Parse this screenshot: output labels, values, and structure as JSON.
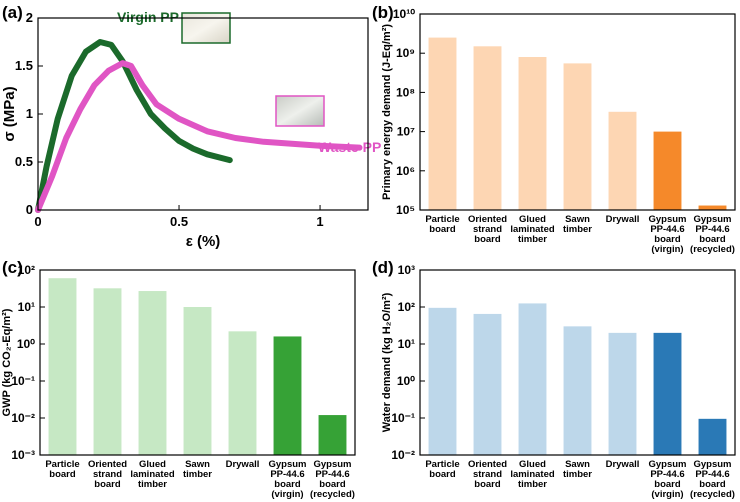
{
  "chart_data": [
    {
      "type": "line",
      "label": "(a)",
      "xlabel": "ε (%)",
      "ylabel": "σ (MPa)",
      "xlim": [
        0,
        1.17
      ],
      "xticks": [
        0,
        0.5,
        1
      ],
      "ylim": [
        0,
        2
      ],
      "yticks": [
        0,
        0.5,
        1,
        1.5,
        2
      ],
      "series": [
        {
          "name": "Virgin PP",
          "color": "#1b6a2b",
          "x": [
            0,
            0.03,
            0.07,
            0.12,
            0.17,
            0.22,
            0.26,
            0.3,
            0.35,
            0.4,
            0.45,
            0.5,
            0.55,
            0.6,
            0.68
          ],
          "values": [
            0,
            0.45,
            0.95,
            1.4,
            1.65,
            1.75,
            1.72,
            1.55,
            1.25,
            1.0,
            0.85,
            0.72,
            0.64,
            0.58,
            0.52
          ]
        },
        {
          "name": "Waste PP",
          "color": "#e055c4",
          "x": [
            0,
            0.05,
            0.1,
            0.15,
            0.2,
            0.25,
            0.3,
            0.33,
            0.37,
            0.42,
            0.5,
            0.6,
            0.7,
            0.8,
            0.9,
            1.0,
            1.14
          ],
          "values": [
            0,
            0.35,
            0.75,
            1.05,
            1.3,
            1.45,
            1.53,
            1.5,
            1.3,
            1.1,
            0.95,
            0.82,
            0.75,
            0.71,
            0.69,
            0.67,
            0.65
          ]
        }
      ]
    },
    {
      "type": "bar",
      "label": "(b)",
      "ylabel": "Primary energy demand (J-Eq/m²)",
      "log_scale": true,
      "ylim": [
        100000,
        10000000000
      ],
      "yticks": [
        {
          "value": 100000,
          "label": "10⁵"
        },
        {
          "value": 1000000,
          "label": "10⁶"
        },
        {
          "value": 10000000,
          "label": "10⁷"
        },
        {
          "value": 100000000,
          "label": "10⁸"
        },
        {
          "value": 1000000000,
          "label": "10⁹"
        },
        {
          "value": 10000000000,
          "label": "10¹⁰"
        }
      ],
      "categories": [
        "Particle board",
        "Oriented strand board",
        "Glued laminated timber",
        "Sawn timber",
        "Drywall",
        "Gypsum PP-44.6 board (virgin)",
        "Gypsum PP-44.6 board (recycled)"
      ],
      "values": [
        2500000000,
        1500000000,
        800000000,
        550000000,
        32000000,
        10000000,
        130000
      ],
      "colors": [
        "#fdd6b3",
        "#fdd6b3",
        "#fdd6b3",
        "#fdd6b3",
        "#fdd6b3",
        "#f5892a",
        "#f5892a"
      ]
    },
    {
      "type": "bar",
      "label": "(c)",
      "ylabel": "GWP (kg CO₂-Eq/m²)",
      "log_scale": true,
      "ylim": [
        0.001,
        100
      ],
      "yticks": [
        {
          "value": 0.001,
          "label": "10⁻³"
        },
        {
          "value": 0.01,
          "label": "10⁻²"
        },
        {
          "value": 0.1,
          "label": "10⁻¹"
        },
        {
          "value": 1,
          "label": "10⁰"
        },
        {
          "value": 10,
          "label": "10¹"
        },
        {
          "value": 100,
          "label": "10²"
        }
      ],
      "categories": [
        "Particle board",
        "Oriented strand board",
        "Glued laminated timber",
        "Sawn timber",
        "Drywall",
        "Gypsum PP-44.6 board (virgin)",
        "Gypsum PP-44.6 board (recycled)"
      ],
      "values": [
        60,
        32,
        27,
        10,
        2.2,
        1.6,
        0.012
      ],
      "colors": [
        "#c6e8c4",
        "#c6e8c4",
        "#c6e8c4",
        "#c6e8c4",
        "#c6e8c4",
        "#36a236",
        "#36a236"
      ]
    },
    {
      "type": "bar",
      "label": "(d)",
      "ylabel": "Water demand (kg H₂O/m²)",
      "log_scale": true,
      "ylim": [
        0.01,
        1000
      ],
      "yticks": [
        {
          "value": 0.01,
          "label": "10⁻²"
        },
        {
          "value": 0.1,
          "label": "10⁻¹"
        },
        {
          "value": 1,
          "label": "10⁰"
        },
        {
          "value": 10,
          "label": "10¹"
        },
        {
          "value": 100,
          "label": "10²"
        },
        {
          "value": 1000,
          "label": "10³"
        }
      ],
      "categories": [
        "Particle board",
        "Oriented strand board",
        "Glued laminated timber",
        "Sawn timber",
        "Drywall",
        "Gypsum PP-44.6 board (virgin)",
        "Gypsum PP-44.6 board (recycled)"
      ],
      "values": [
        95,
        65,
        125,
        30,
        20,
        20,
        0.095
      ],
      "colors": [
        "#bdd7ea",
        "#bdd7ea",
        "#bdd7ea",
        "#bdd7ea",
        "#bdd7ea",
        "#2a79b6",
        "#2a79b6"
      ]
    }
  ]
}
